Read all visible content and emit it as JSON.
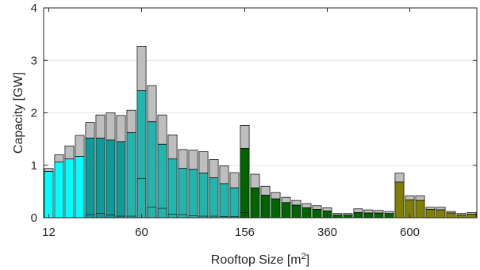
{
  "chart_data": {
    "type": "bar",
    "stacked": true,
    "xlabel": "Rooftop Size [m",
    "xlabel_superscript": "2",
    "xlabel_suffix": "]",
    "ylabel": "Capacity [GW]",
    "ylim": [
      0,
      4
    ],
    "yticks": [
      0,
      1,
      2,
      3,
      4
    ],
    "xticks": [
      {
        "bar_index": 0,
        "label": "12"
      },
      {
        "bar_index": 9,
        "label": "60"
      },
      {
        "bar_index": 19,
        "label": "156"
      },
      {
        "bar_index": 27,
        "label": "360"
      },
      {
        "bar_index": 35,
        "label": "600"
      }
    ],
    "grid": "horizontal",
    "colors": {
      "top": "#bebebe",
      "cyan": "#00ffff",
      "teal_dark": "#0f9a9a",
      "teal_light": "#23b5ad",
      "green": "#006400",
      "olive": "#808000"
    },
    "bars": [
      {
        "base": 0.88,
        "total": 0.94,
        "color": "cyan"
      },
      {
        "base": 1.06,
        "total": 1.2,
        "color": "cyan"
      },
      {
        "base": 1.12,
        "total": 1.37,
        "color": "cyan"
      },
      {
        "base": 1.17,
        "total": 1.57,
        "color": "cyan"
      },
      {
        "base": 1.52,
        "total": 1.82,
        "color": "teal_dark"
      },
      {
        "base": 1.52,
        "total": 1.96,
        "color": "teal_dark"
      },
      {
        "base": 1.48,
        "total": 2.0,
        "color": "teal_dark"
      },
      {
        "base": 1.45,
        "total": 1.95,
        "color": "teal_dark"
      },
      {
        "base": 1.62,
        "total": 2.05,
        "color": "teal_light"
      },
      {
        "base": 2.42,
        "total": 3.27,
        "color": "teal_light"
      },
      {
        "base": 1.83,
        "total": 2.52,
        "color": "teal_light"
      },
      {
        "base": 1.4,
        "total": 1.96,
        "color": "teal_light"
      },
      {
        "base": 1.12,
        "total": 1.58,
        "color": "teal_light"
      },
      {
        "base": 0.94,
        "total": 1.3,
        "color": "teal_light"
      },
      {
        "base": 0.92,
        "total": 1.29,
        "color": "teal_light"
      },
      {
        "base": 0.85,
        "total": 1.26,
        "color": "teal_light"
      },
      {
        "base": 0.76,
        "total": 1.11,
        "color": "teal_light"
      },
      {
        "base": 0.65,
        "total": 0.99,
        "color": "teal_light"
      },
      {
        "base": 0.57,
        "total": 0.86,
        "color": "teal_light"
      },
      {
        "base": 1.32,
        "total": 1.76,
        "color": "green"
      },
      {
        "base": 0.57,
        "total": 0.83,
        "color": "green"
      },
      {
        "base": 0.43,
        "total": 0.6,
        "color": "green"
      },
      {
        "base": 0.36,
        "total": 0.48,
        "color": "green"
      },
      {
        "base": 0.29,
        "total": 0.39,
        "color": "green"
      },
      {
        "base": 0.24,
        "total": 0.33,
        "color": "green"
      },
      {
        "base": 0.19,
        "total": 0.27,
        "color": "green"
      },
      {
        "base": 0.16,
        "total": 0.23,
        "color": "green"
      },
      {
        "base": 0.13,
        "total": 0.19,
        "color": "green"
      },
      {
        "base": 0.05,
        "total": 0.08,
        "color": "green"
      },
      {
        "base": 0.05,
        "total": 0.08,
        "color": "green"
      },
      {
        "base": 0.1,
        "total": 0.17,
        "color": "green"
      },
      {
        "base": 0.09,
        "total": 0.15,
        "color": "green"
      },
      {
        "base": 0.09,
        "total": 0.14,
        "color": "green"
      },
      {
        "base": 0.08,
        "total": 0.12,
        "color": "green"
      },
      {
        "base": 0.68,
        "total": 0.85,
        "color": "olive"
      },
      {
        "base": 0.34,
        "total": 0.42,
        "color": "olive"
      },
      {
        "base": 0.33,
        "total": 0.42,
        "color": "olive"
      },
      {
        "base": 0.16,
        "total": 0.2,
        "color": "olive"
      },
      {
        "base": 0.15,
        "total": 0.2,
        "color": "olive"
      },
      {
        "base": 0.09,
        "total": 0.12,
        "color": "olive"
      },
      {
        "base": 0.05,
        "total": 0.08,
        "color": "olive"
      },
      {
        "base": 0.07,
        "total": 0.1,
        "color": "olive"
      }
    ],
    "inner_segments": [
      {
        "bar_index": 4,
        "value": 0.06
      },
      {
        "bar_index": 5,
        "value": 0.08
      },
      {
        "bar_index": 6,
        "value": 0.05
      },
      {
        "bar_index": 7,
        "value": 0.03
      },
      {
        "bar_index": 8,
        "value": 0.03
      },
      {
        "bar_index": 9,
        "value": 0.75
      },
      {
        "bar_index": 10,
        "value": 0.2
      },
      {
        "bar_index": 11,
        "value": 0.18
      },
      {
        "bar_index": 12,
        "value": 0.07
      },
      {
        "bar_index": 13,
        "value": 0.06
      },
      {
        "bar_index": 14,
        "value": 0.04
      },
      {
        "bar_index": 15,
        "value": 0.03
      },
      {
        "bar_index": 16,
        "value": 0.03
      },
      {
        "bar_index": 17,
        "value": 0.02
      },
      {
        "bar_index": 18,
        "value": 0.02
      },
      {
        "bar_index": 19,
        "value": 0.1
      }
    ]
  }
}
